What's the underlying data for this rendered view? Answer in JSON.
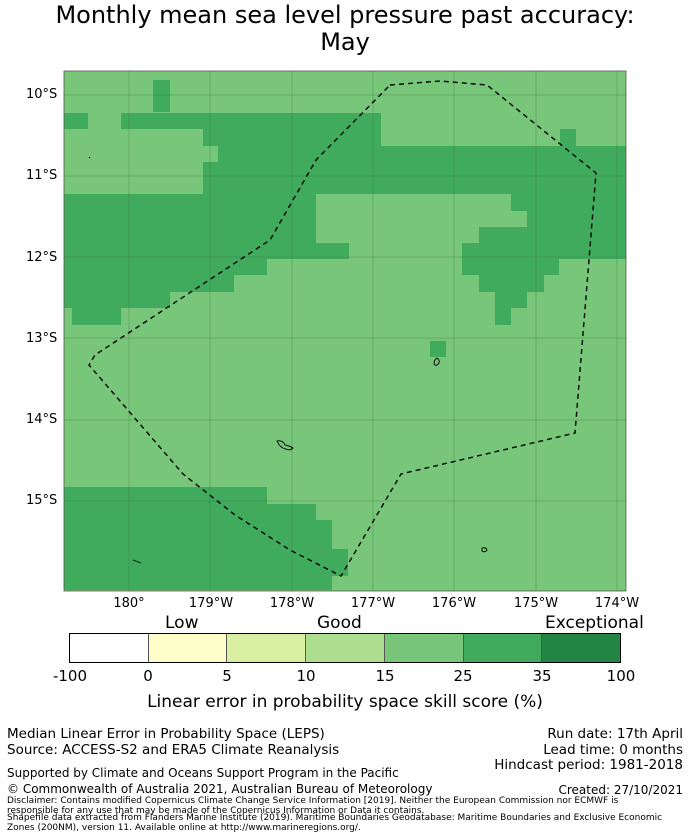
{
  "title": "Monthly mean sea level pressure past accuracy:",
  "subtitle": "May",
  "map": {
    "lat_labels": [
      "10°S",
      "11°S",
      "12°S",
      "13°S",
      "14°S",
      "15°S"
    ],
    "lon_labels": [
      "180°",
      "179°W",
      "178°W",
      "177°W",
      "176°W",
      "175°W",
      "174°W"
    ],
    "legend_colors": {
      "light_green": "#78c679",
      "dark_green": "#41ab5d",
      "boundary": "#000000"
    }
  },
  "colorbar": {
    "category_labels": [
      "Low",
      "Good",
      "Exceptional"
    ],
    "tick_labels": [
      "-100",
      "0",
      "5",
      "10",
      "15",
      "25",
      "35",
      "100"
    ],
    "colors": [
      "#ffffff",
      "#ffffcc",
      "#d9f0a3",
      "#addd8e",
      "#78c679",
      "#41ab5d",
      "#238443"
    ],
    "title": "Linear error in probability space skill score (%)"
  },
  "info": {
    "line1": "Median Linear Error in Probability Space (LEPS)",
    "line2": "Source: ACCESS-S2 and ERA5 Climate Reanalysis",
    "run_date": "Run date: 17th April",
    "lead_time": "Lead time: 0 months",
    "hindcast": "Hindcast period: 1981-2018",
    "supported": "Supported by Climate and Oceans Support Program in the Pacific",
    "copyright": "© Commonwealth of Australia 2021, Australian Bureau of Meteorology",
    "created": "Created: 27/10/2021",
    "disclaimer1": "Disclaimer: Contains modified Copernicus Climate Change Service Information [2019]. Neither the European Commission nor ECMWF is",
    "disclaimer2": "responsible for any use that may be made of the Copernicus Information or Data it contains.",
    "shapefile1": "Shapefile data extracted from Flanders Marine Institute (2019). Maritime Boundaries Geodatabase: Maritime Boundaries and Exclusive Economic",
    "shapefile2": "Zones (200NM), version 11. Available online at http://www.marineregions.org/."
  }
}
